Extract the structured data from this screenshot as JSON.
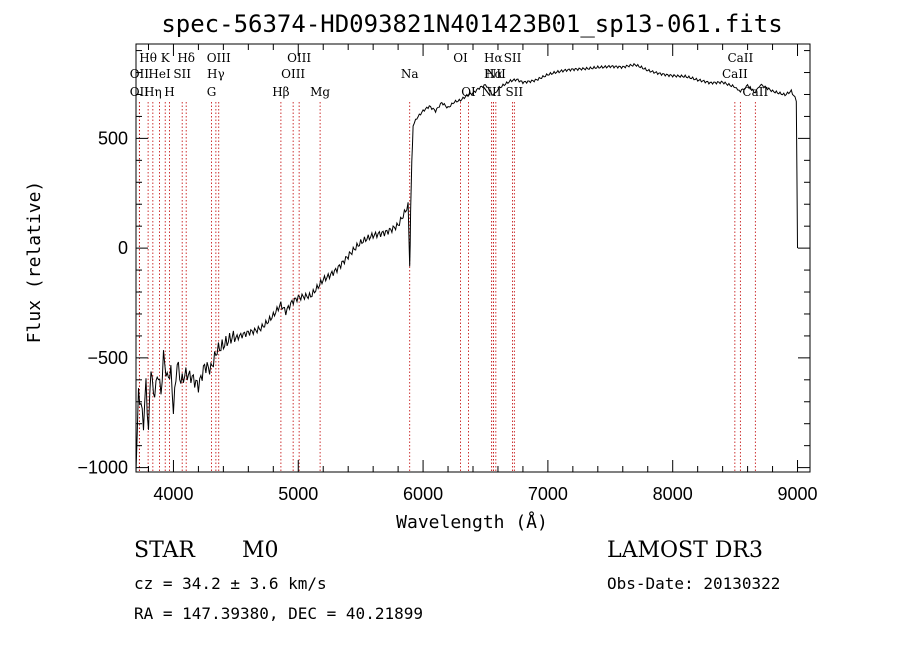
{
  "chart_data": {
    "type": "line",
    "title": "spec-56374-HD093821N401423B01_sp13-061.fits",
    "xlabel": "Wavelength (Å)",
    "ylabel": "Flux (relative)",
    "xlim": [
      3700,
      9100
    ],
    "ylim": [
      -1020,
      930
    ],
    "x_ticks": [
      4000,
      5000,
      6000,
      7000,
      8000,
      9000
    ],
    "x_tick_labels": [
      "4000",
      "5000",
      "6000",
      "7000",
      "8000",
      "9000"
    ],
    "y_ticks": [
      -1000,
      -500,
      0,
      500
    ],
    "y_tick_labels": [
      "−1000",
      "−500",
      "0",
      "500"
    ],
    "series": [
      {
        "name": "spectrum",
        "x": [
          3700,
          3720,
          3740,
          3760,
          3780,
          3800,
          3820,
          3840,
          3860,
          3880,
          3900,
          3920,
          3950,
          3980,
          4000,
          4030,
          4060,
          4100,
          4150,
          4200,
          4250,
          4300,
          4350,
          4400,
          4500,
          4600,
          4700,
          4800,
          4860,
          4900,
          4950,
          5000,
          5100,
          5200,
          5300,
          5400,
          5500,
          5600,
          5700,
          5800,
          5850,
          5880,
          5893,
          5900,
          5910,
          5920,
          5950,
          6000,
          6050,
          6100,
          6150,
          6200,
          6250,
          6300,
          6350,
          6400,
          6450,
          6500,
          6562,
          6600,
          6650,
          6700,
          6750,
          6800,
          6900,
          7000,
          7100,
          7200,
          7300,
          7400,
          7500,
          7600,
          7700,
          7800,
          7900,
          8000,
          8100,
          8200,
          8300,
          8400,
          8500,
          8542,
          8600,
          8662,
          8700,
          8800,
          8900,
          8950,
          8990,
          9000
        ],
        "y": [
          -1000,
          -650,
          -700,
          -800,
          -620,
          -850,
          -550,
          -700,
          -650,
          -600,
          -700,
          -520,
          -620,
          -580,
          -750,
          -520,
          -600,
          -550,
          -560,
          -600,
          -520,
          -550,
          -480,
          -470,
          -420,
          -380,
          -350,
          -300,
          -260,
          -300,
          -260,
          -240,
          -220,
          -130,
          -90,
          -40,
          10,
          50,
          80,
          120,
          170,
          200,
          -90,
          170,
          390,
          560,
          590,
          620,
          640,
          620,
          660,
          640,
          670,
          680,
          700,
          710,
          730,
          740,
          690,
          720,
          740,
          760,
          770,
          760,
          770,
          790,
          800,
          810,
          820,
          830,
          830,
          820,
          830,
          810,
          800,
          790,
          780,
          760,
          750,
          760,
          740,
          710,
          740,
          700,
          740,
          710,
          700,
          720,
          680,
          0
        ]
      }
    ],
    "lines": [
      {
        "name": "OII",
        "wave": 3727,
        "row": 3
      },
      {
        "name": "Hθ",
        "wave": 3797,
        "row": 1
      },
      {
        "name": "OII",
        "wave": 3727,
        "row": 2
      },
      {
        "name": "Hη",
        "wave": 3835,
        "row": 3
      },
      {
        "name": "HeI",
        "wave": 3889,
        "row": 2
      },
      {
        "name": "K",
        "wave": 3934,
        "row": 1
      },
      {
        "name": "SII",
        "wave": 4070,
        "row": 2
      },
      {
        "name": "H",
        "wave": 3968,
        "row": 3
      },
      {
        "name": "Hδ",
        "wave": 4102,
        "row": 1
      },
      {
        "name": "OIII",
        "wave": 4363,
        "row": 1
      },
      {
        "name": "Hγ",
        "wave": 4340,
        "row": 2
      },
      {
        "name": "G",
        "wave": 4305,
        "row": 3
      },
      {
        "name": "Hβ",
        "wave": 4861,
        "row": 3
      },
      {
        "name": "OIII",
        "wave": 5007,
        "row": 1
      },
      {
        "name": "OIII",
        "wave": 4959,
        "row": 2
      },
      {
        "name": "Mg",
        "wave": 5175,
        "row": 3
      },
      {
        "name": "Na",
        "wave": 5893,
        "row": 2
      },
      {
        "name": "OI",
        "wave": 6300,
        "row": 1
      },
      {
        "name": "OI",
        "wave": 6364,
        "row": 3
      },
      {
        "name": "Hα",
        "wave": 6563,
        "row": 1
      },
      {
        "name": "SII",
        "wave": 6717,
        "row": 1
      },
      {
        "name": "NII",
        "wave": 6583,
        "row": 2
      },
      {
        "name": "Hα",
        "wave": 6563,
        "row": 2
      },
      {
        "name": "NII",
        "wave": 6548,
        "row": 3
      },
      {
        "name": "SII",
        "wave": 6731,
        "row": 3
      },
      {
        "name": "CaII",
        "wave": 8542,
        "row": 1
      },
      {
        "name": "CaII",
        "wave": 8498,
        "row": 2
      },
      {
        "name": "CaII",
        "wave": 8662,
        "row": 3
      }
    ]
  },
  "info": {
    "object_class": "STAR",
    "subclass": "M0",
    "survey": "LAMOST DR3",
    "redshift": "cz = 34.2 ± 3.6 km/s",
    "obs_date": "Obs-Date: 20130322",
    "coords": "RA = 147.39380, DEC =  40.21899"
  },
  "colors": {
    "spectrum": "#000000",
    "lines": "#c00000",
    "axes": "#000000"
  }
}
